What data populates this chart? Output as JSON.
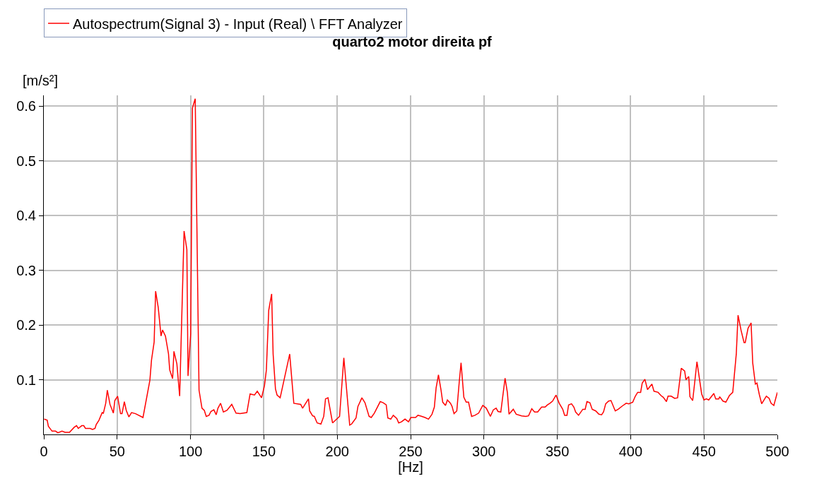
{
  "chart_data": {
    "type": "line",
    "title": "quarto2 motor direita pf",
    "xlabel": "[Hz]",
    "ylabel": "[m/s²]",
    "xlim": [
      0,
      500
    ],
    "xticks": [
      0,
      50,
      100,
      150,
      200,
      250,
      300,
      350,
      400,
      450,
      500
    ],
    "ylim": [
      0,
      0.62
    ],
    "yticks": [
      0.1,
      0.2,
      0.3,
      0.4,
      0.5,
      0.6
    ],
    "grid": true,
    "legend": "top",
    "marker": "none",
    "line_style": "solid",
    "series": [
      {
        "name": "Autospectrum(Signal 3) - Input (Real) \\ FFT Analyzer",
        "color": "#ff0000",
        "x": [
          0.2,
          2.3,
          3.1,
          5.6,
          8.0,
          9.6,
          12.4,
          14.5,
          17.5,
          20.7,
          22.3,
          23.5,
          25.9,
          27.2,
          28.4,
          31.6,
          33.2,
          34.9,
          35.7,
          37.6,
          39.8,
          40.6,
          42.2,
          43.3,
          45.1,
          47.4,
          48.4,
          50.3,
          52.3,
          53.3,
          54.9,
          56.2,
          58.0,
          59.8,
          62.5,
          67.6,
          72.3,
          73.4,
          75.2,
          76.2,
          78.0,
          79.9,
          80.9,
          82.9,
          85.0,
          85.8,
          87.8,
          88.7,
          90.7,
          92.6,
          95.6,
          97.5,
          98.3,
          100.1,
          101.3,
          103.2,
          105.8,
          107.8,
          109.4,
          110.7,
          112.6,
          113.9,
          115.9,
          117.5,
          118.7,
          120.5,
          122.4,
          124.8,
          128.1,
          131.0,
          133.8,
          138.4,
          140.6,
          143.6,
          145.5,
          148.4,
          150.4,
          151.7,
          153.3,
          155.3,
          156.3,
          157.9,
          159.0,
          161.1,
          167.6,
          170.4,
          175.1,
          176.4,
          180.4,
          181.2,
          183.2,
          184.4,
          186.3,
          188.9,
          190.8,
          192.0,
          193.7,
          196.8,
          201.6,
          204.5,
          208.5,
          209.8,
          212.8,
          214.1,
          216.8,
          218.9,
          221.7,
          223.2,
          225.3,
          229.3,
          231.3,
          233.4,
          234.5,
          236.5,
          238.2,
          240.6,
          241.9,
          243.8,
          246.2,
          248.6,
          250.2,
          253.4,
          255.0,
          256.6,
          259.8,
          262.2,
          264.6,
          266.2,
          267.4,
          269.0,
          270.7,
          271.9,
          273.8,
          275.1,
          277.2,
          278.3,
          279.6,
          281.5,
          283.1,
          284.4,
          286.3,
          287.9,
          289.5,
          291.6,
          293.9,
          296.4,
          299.2,
          301.6,
          304.4,
          306.4,
          308.3,
          309.6,
          311.5,
          314.4,
          316.0,
          317.1,
          320.0,
          322.0,
          325.7,
          328.5,
          330.4,
          332.6,
          334.5,
          336.6,
          339.3,
          341.7,
          343.3,
          345.0,
          346.8,
          349.1,
          351.3,
          353.7,
          355.0,
          356.6,
          357.7,
          359.7,
          361.3,
          362.5,
          364.5,
          367.4,
          369.0,
          370.2,
          372.2,
          373.8,
          376.2,
          378.3,
          380.2,
          381.5,
          383.0,
          385.0,
          386.6,
          389.5,
          391.5,
          394.3,
          397.0,
          398.7,
          401.4,
          403.2,
          404.8,
          406.8,
          407.9,
          409.7,
          411.5,
          414.5,
          415.9,
          418.7,
          420.7,
          422.2,
          424.4,
          425.5,
          427.6,
          430.0,
          432.0,
          434.5,
          436.8,
          437.7,
          439.6,
          440.4,
          442.3,
          445.2,
          448.4,
          450.0,
          451.6,
          453.2,
          456.7,
          458.0,
          460.1,
          460.7,
          462.9,
          464.9,
          467.3,
          469.6,
          472.0,
          473.2,
          475.3,
          477.3,
          478.1,
          480.0,
          482.1,
          483.2,
          485.0,
          486.1,
          487.7,
          489.3,
          492.5,
          494.4,
          495.7,
          497.6,
          500
        ],
        "values": [
          0.028,
          0.026,
          0.015,
          0.006,
          0.006,
          0.003,
          0.006,
          0.004,
          0.004,
          0.013,
          0.016,
          0.011,
          0.016,
          0.016,
          0.011,
          0.011,
          0.009,
          0.011,
          0.018,
          0.026,
          0.04,
          0.039,
          0.057,
          0.081,
          0.055,
          0.039,
          0.062,
          0.07,
          0.038,
          0.038,
          0.06,
          0.044,
          0.032,
          0.04,
          0.038,
          0.031,
          0.099,
          0.136,
          0.169,
          0.262,
          0.232,
          0.18,
          0.191,
          0.18,
          0.147,
          0.118,
          0.102,
          0.152,
          0.129,
          0.07,
          0.372,
          0.338,
          0.107,
          0.184,
          0.597,
          0.614,
          0.081,
          0.048,
          0.044,
          0.033,
          0.035,
          0.042,
          0.045,
          0.036,
          0.048,
          0.057,
          0.041,
          0.044,
          0.055,
          0.039,
          0.038,
          0.04,
          0.074,
          0.072,
          0.079,
          0.067,
          0.089,
          0.118,
          0.227,
          0.257,
          0.147,
          0.083,
          0.072,
          0.067,
          0.147,
          0.057,
          0.055,
          0.048,
          0.065,
          0.043,
          0.034,
          0.033,
          0.021,
          0.019,
          0.033,
          0.065,
          0.067,
          0.021,
          0.033,
          0.14,
          0.017,
          0.019,
          0.03,
          0.051,
          0.067,
          0.058,
          0.033,
          0.031,
          0.039,
          0.06,
          0.058,
          0.054,
          0.03,
          0.028,
          0.035,
          0.029,
          0.021,
          0.023,
          0.028,
          0.023,
          0.031,
          0.031,
          0.035,
          0.034,
          0.031,
          0.028,
          0.037,
          0.05,
          0.085,
          0.109,
          0.082,
          0.059,
          0.053,
          0.063,
          0.057,
          0.051,
          0.038,
          0.043,
          0.094,
          0.131,
          0.068,
          0.059,
          0.059,
          0.033,
          0.035,
          0.039,
          0.053,
          0.048,
          0.033,
          0.045,
          0.048,
          0.042,
          0.041,
          0.103,
          0.076,
          0.037,
          0.046,
          0.037,
          0.034,
          0.033,
          0.034,
          0.047,
          0.041,
          0.041,
          0.05,
          0.05,
          0.054,
          0.057,
          0.061,
          0.072,
          0.057,
          0.046,
          0.035,
          0.035,
          0.054,
          0.056,
          0.05,
          0.041,
          0.035,
          0.046,
          0.046,
          0.06,
          0.058,
          0.046,
          0.043,
          0.037,
          0.036,
          0.041,
          0.056,
          0.061,
          0.062,
          0.043,
          0.046,
          0.052,
          0.057,
          0.056,
          0.059,
          0.07,
          0.077,
          0.077,
          0.094,
          0.101,
          0.082,
          0.092,
          0.079,
          0.077,
          0.071,
          0.068,
          0.06,
          0.07,
          0.07,
          0.066,
          0.067,
          0.121,
          0.116,
          0.1,
          0.106,
          0.069,
          0.062,
          0.133,
          0.074,
          0.063,
          0.065,
          0.063,
          0.075,
          0.065,
          0.065,
          0.069,
          0.061,
          0.059,
          0.071,
          0.077,
          0.147,
          0.218,
          0.19,
          0.168,
          0.168,
          0.194,
          0.204,
          0.131,
          0.092,
          0.094,
          0.073,
          0.056,
          0.07,
          0.066,
          0.057,
          0.053,
          0.077
        ]
      }
    ]
  }
}
